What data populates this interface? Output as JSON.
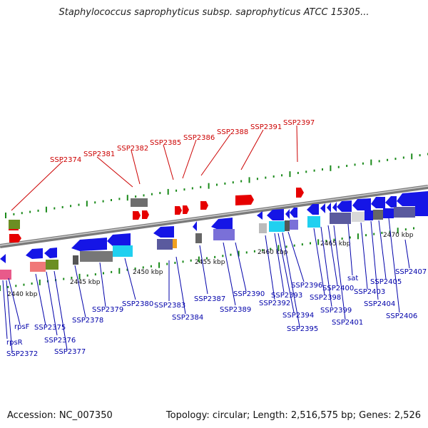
{
  "header": {
    "title": "Staphylococcus saprophyticus subsp. saprophyticus ATCC 15305..."
  },
  "footer": {
    "accession": "Accession: NC_007350",
    "summary": "Topology: circular; Length: 2,516,575 bp; Genes: 2,526"
  },
  "colors": {
    "rna_label": "#cc0000",
    "gene_label": "#0000aa",
    "forward_cds": "#1515e6",
    "reverse_cds": "#1515e6",
    "rna_feature": "#e60000",
    "backbone": "#888888",
    "ticks": "#1a8a1a"
  },
  "axis": {
    "unit": "kbp",
    "ticks": [
      {
        "label": "2440 kbp"
      },
      {
        "label": "2445 kbp"
      },
      {
        "label": "2450 kbp"
      },
      {
        "label": "2455 kbp"
      },
      {
        "label": "2460 kbp"
      },
      {
        "label": "2465 kbp"
      },
      {
        "label": "2470 kbp"
      }
    ]
  },
  "rna_labels": [
    "SSP2374",
    "SSP2381",
    "SSP2382",
    "SSP2385",
    "SSP2386",
    "SSP2388",
    "SSP2391",
    "SSP2397"
  ],
  "gene_labels": [
    "rpsF",
    "rpsR",
    "SSP2372",
    "SSP2375",
    "SSP2376",
    "SSP2377",
    "SSP2378",
    "SSP2379",
    "SSP2380",
    "SSP2383",
    "SSP2384",
    "SSP2387",
    "SSP2389",
    "SSP2390",
    "SSP2392",
    "SSP2393",
    "SSP2394",
    "SSP2395",
    "SSP2396",
    "SSP2398",
    "SSP2399",
    "SSP2400",
    "SSP2401",
    "sat",
    "SSP2403",
    "SSP2404",
    "SSP2405",
    "SSP2406",
    "SSP2407"
  ]
}
